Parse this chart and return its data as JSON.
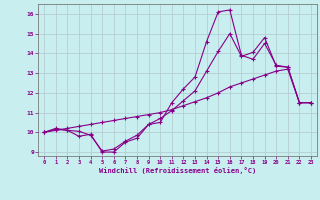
{
  "title": "",
  "xlabel": "Windchill (Refroidissement éolien,°C)",
  "ylabel": "",
  "bg_color": "#c8eef0",
  "grid_color": "#b0c8cc",
  "line_color": "#880088",
  "xlim": [
    -0.5,
    23.5
  ],
  "ylim": [
    8.8,
    16.5
  ],
  "yticks": [
    9,
    10,
    11,
    12,
    13,
    14,
    15,
    16
  ],
  "xticks": [
    0,
    1,
    2,
    3,
    4,
    5,
    6,
    7,
    8,
    9,
    10,
    11,
    12,
    13,
    14,
    15,
    16,
    17,
    18,
    19,
    20,
    21,
    22,
    23
  ],
  "series1_x": [
    0,
    1,
    2,
    3,
    4,
    5,
    6,
    7,
    8,
    9,
    10,
    11,
    12,
    13,
    14,
    15,
    16,
    17,
    18,
    19,
    20,
    21,
    22,
    23
  ],
  "series1_y": [
    10.0,
    10.2,
    10.1,
    9.8,
    9.9,
    9.0,
    9.0,
    9.5,
    9.7,
    10.4,
    10.5,
    11.5,
    12.2,
    12.8,
    14.6,
    16.1,
    16.2,
    13.9,
    13.7,
    14.5,
    13.4,
    13.3,
    11.5,
    11.5
  ],
  "series2_x": [
    0,
    1,
    2,
    3,
    4,
    5,
    6,
    7,
    8,
    9,
    10,
    11,
    12,
    13,
    14,
    15,
    16,
    17,
    18,
    19,
    20,
    21,
    22,
    23
  ],
  "series2_y": [
    10.0,
    10.15,
    10.1,
    10.05,
    9.85,
    9.05,
    9.15,
    9.55,
    9.85,
    10.4,
    10.7,
    11.1,
    11.6,
    12.1,
    13.1,
    14.1,
    15.0,
    13.85,
    14.05,
    14.8,
    13.35,
    13.3,
    11.5,
    11.5
  ],
  "series3_x": [
    0,
    1,
    2,
    3,
    4,
    5,
    6,
    7,
    8,
    9,
    10,
    11,
    12,
    13,
    14,
    15,
    16,
    17,
    18,
    19,
    20,
    21,
    22,
    23
  ],
  "series3_y": [
    10.0,
    10.1,
    10.2,
    10.3,
    10.4,
    10.5,
    10.6,
    10.7,
    10.8,
    10.9,
    11.0,
    11.15,
    11.35,
    11.55,
    11.75,
    12.0,
    12.3,
    12.5,
    12.7,
    12.9,
    13.1,
    13.2,
    11.5,
    11.5
  ]
}
